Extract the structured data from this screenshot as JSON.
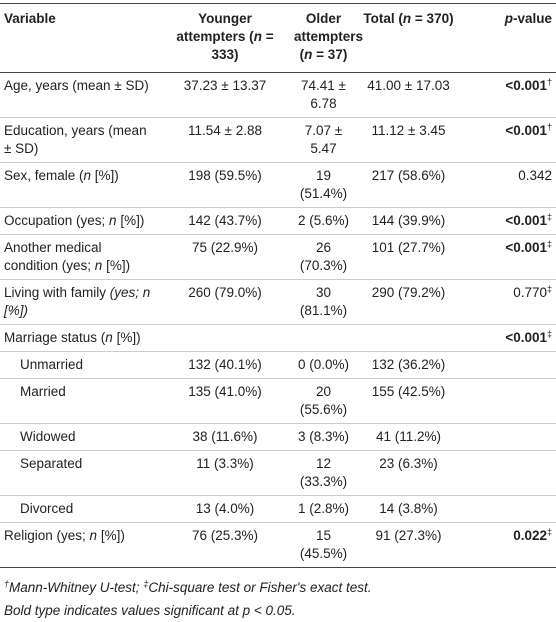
{
  "table": {
    "header": [
      [
        {
          "text": "Variable"
        }
      ],
      [
        {
          "text": "Younger attempters ("
        },
        {
          "text": "n",
          "italic": true
        },
        {
          "text": " = 333)"
        }
      ],
      [
        {
          "text": "Older attempters ("
        },
        {
          "text": "n",
          "italic": true
        },
        {
          "text": " = 37)"
        }
      ],
      [
        {
          "text": "Total ("
        },
        {
          "text": "n",
          "italic": true
        },
        {
          "text": " = 370)"
        }
      ],
      [
        {
          "text": "p",
          "italic": true
        },
        {
          "text": "-value"
        }
      ]
    ],
    "rows": [
      {
        "cells": [
          [
            {
              "text": "Age, years (mean ± SD)"
            }
          ],
          [
            {
              "text": "37.23 ± 13.37"
            }
          ],
          [
            {
              "text": "74.41 ± 6.78"
            }
          ],
          [
            {
              "text": "41.00 ± 17.03"
            }
          ],
          [
            {
              "text": "<0.001",
              "bold": true
            },
            {
              "text": "†",
              "sup": true
            }
          ]
        ]
      },
      {
        "cells": [
          [
            {
              "text": "Education, years (mean ± SD)"
            }
          ],
          [
            {
              "text": "11.54 ± 2.88"
            }
          ],
          [
            {
              "text": "7.07 ± 5.47"
            }
          ],
          [
            {
              "text": "11.12 ± 3.45"
            }
          ],
          [
            {
              "text": "<0.001",
              "bold": true
            },
            {
              "text": "†",
              "sup": true
            }
          ]
        ]
      },
      {
        "cells": [
          [
            {
              "text": "Sex, female ("
            },
            {
              "text": "n",
              "italic": true
            },
            {
              "text": " [%])"
            }
          ],
          [
            {
              "text": "198 (59.5%)"
            }
          ],
          [
            {
              "text": "19 (51.4%)"
            }
          ],
          [
            {
              "text": "217 (58.6%)"
            }
          ],
          [
            {
              "text": "0.342"
            }
          ]
        ]
      },
      {
        "cells": [
          [
            {
              "text": "Occupation (yes; "
            },
            {
              "text": "n",
              "italic": true
            },
            {
              "text": " [%])"
            }
          ],
          [
            {
              "text": "142 (43.7%)"
            }
          ],
          [
            {
              "text": "2 (5.6%)"
            }
          ],
          [
            {
              "text": "144 (39.9%)"
            }
          ],
          [
            {
              "text": "<0.001",
              "bold": true
            },
            {
              "text": "‡",
              "sup": true
            }
          ]
        ]
      },
      {
        "cells": [
          [
            {
              "text": "Another medical condition (yes; "
            },
            {
              "text": "n",
              "italic": true
            },
            {
              "text": " [%])"
            }
          ],
          [
            {
              "text": "75 (22.9%)"
            }
          ],
          [
            {
              "text": "26 (70.3%)"
            }
          ],
          [
            {
              "text": "101 (27.7%)"
            }
          ],
          [
            {
              "text": "<0.001",
              "bold": true
            },
            {
              "text": "‡",
              "sup": true
            }
          ]
        ]
      },
      {
        "cells": [
          [
            {
              "text": "Living with family "
            },
            {
              "text": "(yes; n [%])",
              "italic": true
            }
          ],
          [
            {
              "text": "260 (79.0%)"
            }
          ],
          [
            {
              "text": "30 (81.1%)"
            }
          ],
          [
            {
              "text": "290 (79.2%)"
            }
          ],
          [
            {
              "text": "0.770"
            },
            {
              "text": "‡",
              "sup": true
            }
          ]
        ]
      },
      {
        "cells": [
          [
            {
              "text": "Marriage status ("
            },
            {
              "text": "n",
              "italic": true
            },
            {
              "text": " [%])"
            }
          ],
          [],
          [],
          [],
          [
            {
              "text": "<0.001",
              "bold": true
            },
            {
              "text": "‡",
              "sup": true
            }
          ]
        ]
      },
      {
        "indent": true,
        "cells": [
          [
            {
              "text": "Unmarried"
            }
          ],
          [
            {
              "text": "132 (40.1%)"
            }
          ],
          [
            {
              "text": "0 (0.0%)"
            }
          ],
          [
            {
              "text": "132 (36.2%)"
            }
          ],
          []
        ]
      },
      {
        "indent": true,
        "cells": [
          [
            {
              "text": "Married"
            }
          ],
          [
            {
              "text": "135 (41.0%)"
            }
          ],
          [
            {
              "text": "20 (55.6%)"
            }
          ],
          [
            {
              "text": "155 (42.5%)"
            }
          ],
          []
        ]
      },
      {
        "indent": true,
        "cells": [
          [
            {
              "text": "Widowed"
            }
          ],
          [
            {
              "text": "38 (11.6%)"
            }
          ],
          [
            {
              "text": "3 (8.3%)"
            }
          ],
          [
            {
              "text": "41 (11.2%)"
            }
          ],
          []
        ]
      },
      {
        "indent": true,
        "cells": [
          [
            {
              "text": "Separated"
            }
          ],
          [
            {
              "text": "11 (3.3%)"
            }
          ],
          [
            {
              "text": "12 (33.3%)"
            }
          ],
          [
            {
              "text": "23 (6.3%)"
            }
          ],
          []
        ]
      },
      {
        "indent": true,
        "cells": [
          [
            {
              "text": "Divorced"
            }
          ],
          [
            {
              "text": "13 (4.0%)"
            }
          ],
          [
            {
              "text": "1 (2.8%)"
            }
          ],
          [
            {
              "text": "14 (3.8%)"
            }
          ],
          []
        ]
      },
      {
        "cells": [
          [
            {
              "text": "Religion (yes; "
            },
            {
              "text": "n",
              "italic": true
            },
            {
              "text": " [%])"
            }
          ],
          [
            {
              "text": "76 (25.3%)"
            }
          ],
          [
            {
              "text": "15 (45.5%)"
            }
          ],
          [
            {
              "text": "91 (27.3%)"
            }
          ],
          [
            {
              "text": "0.022",
              "bold": true
            },
            {
              "text": "‡",
              "sup": true
            }
          ]
        ]
      }
    ],
    "footnotes": [
      [
        {
          "text": "†",
          "sup": true,
          "italic": true
        },
        {
          "text": "Mann-Whitney U-test; ",
          "italic": true
        },
        {
          "text": "‡",
          "sup": true,
          "italic": true
        },
        {
          "text": "Chi-square test or Fisher's exact test.",
          "italic": true
        }
      ],
      [
        {
          "text": "Bold type indicates values significant at p < 0.05.",
          "italic": true
        }
      ]
    ]
  }
}
